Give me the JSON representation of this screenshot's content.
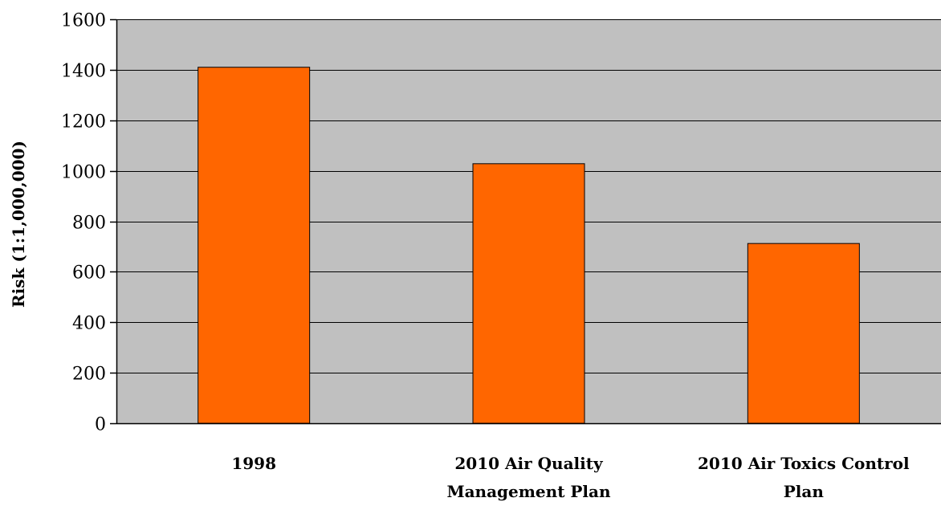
{
  "chart_data": {
    "type": "bar",
    "title": "",
    "xlabel": "",
    "ylabel": "Risk (1:1,000,000)",
    "categories": [
      [
        "1998"
      ],
      [
        "2010 Air Quality",
        "Management Plan"
      ],
      [
        "2010 Air Toxics Control",
        "Plan"
      ]
    ],
    "values": [
      1410,
      1028,
      712
    ],
    "ylim": [
      0,
      1600
    ],
    "yticks": [
      0,
      200,
      400,
      600,
      800,
      1000,
      1200,
      1400,
      1600
    ],
    "grid": true,
    "legend": "none",
    "colors": {
      "bar": "#FF6600",
      "plot_background": "#C0C0C0",
      "gridline": "#000000"
    }
  }
}
